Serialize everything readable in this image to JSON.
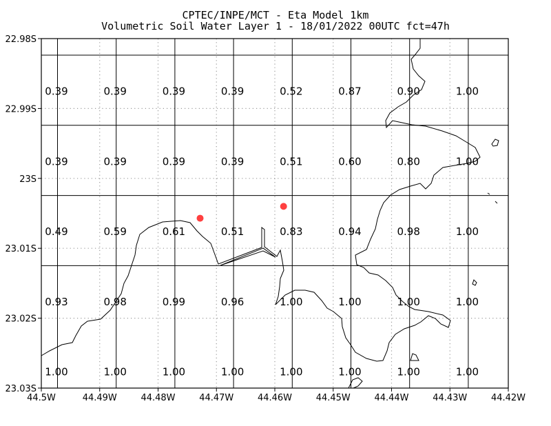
{
  "header": {
    "line1": "CPTEC/INPE/MCT -  Eta Model 1km",
    "line2": "Volumetric Soil Water Layer 1 - 18/01/2022 00UTC fct=47h"
  },
  "chart_data": {
    "type": "heatmap",
    "title": "CPTEC/INPE/MCT -  Eta Model 1km",
    "subtitle": "Volumetric Soil Water Layer 1 - 18/01/2022 00UTC fct=47h",
    "x_ticks": [
      "44.5W",
      "44.49W",
      "44.48W",
      "44.47W",
      "44.46W",
      "44.45W",
      "44.44W",
      "44.43W",
      "44.42W"
    ],
    "y_ticks": [
      "22.98S",
      "22.99S",
      "23S",
      "23.01S",
      "23.02S",
      "23.03S"
    ],
    "xlim": [
      -44.5,
      -44.42
    ],
    "ylim": [
      -23.03,
      -22.98
    ],
    "grid_values": [
      [
        "0.39",
        "0.39",
        "0.39",
        "0.39",
        "0.52",
        "0.87",
        "0.90",
        "1.00"
      ],
      [
        "0.39",
        "0.39",
        "0.39",
        "0.39",
        "0.51",
        "0.60",
        "0.80",
        "1.00"
      ],
      [
        "0.49",
        "0.59",
        "0.61",
        "0.51",
        "0.83",
        "0.94",
        "0.98",
        "1.00"
      ],
      [
        "0.93",
        "0.98",
        "0.99",
        "0.96",
        "1.00",
        "1.00",
        "1.00",
        "1.00"
      ],
      [
        "1.00",
        "1.00",
        "1.00",
        "1.00",
        "1.00",
        "1.00",
        "1.00",
        "1.00"
      ]
    ],
    "markers": [
      {
        "lon": -44.4728,
        "lat": -23.0057,
        "color": "#ff4040"
      },
      {
        "lon": -44.4585,
        "lat": -23.004,
        "color": "#ff4040"
      }
    ]
  }
}
